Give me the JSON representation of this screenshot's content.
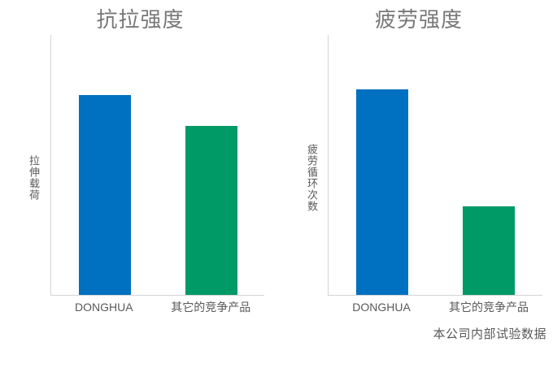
{
  "footnote": "本公司内部试验数据",
  "colors": {
    "donghua_bar": "#0070C0",
    "competitor_bar": "#009A66",
    "axis_line": "#D4D4D4",
    "title_text": "#787878",
    "label_text": "#595959"
  },
  "chart_data": [
    {
      "type": "bar",
      "title": "抗拉强度",
      "ylabel": "拉伸载荷",
      "xlabel": "",
      "categories": [
        "DONGHUA",
        "其它的竞争产品"
      ],
      "values": [
        77,
        65
      ],
      "colors": [
        "#0070C0",
        "#009A66"
      ],
      "ylim": [
        0,
        100
      ],
      "grid": false,
      "legend": false,
      "axis_ticks": "none"
    },
    {
      "type": "bar",
      "title": "疲劳强度",
      "ylabel": "疲劳循环次数",
      "xlabel": "",
      "categories": [
        "DONGHUA",
        "其它的竞争产品"
      ],
      "values": [
        79,
        34
      ],
      "colors": [
        "#0070C0",
        "#009A66"
      ],
      "ylim": [
        0,
        100
      ],
      "grid": false,
      "legend": false,
      "axis_ticks": "none"
    }
  ]
}
